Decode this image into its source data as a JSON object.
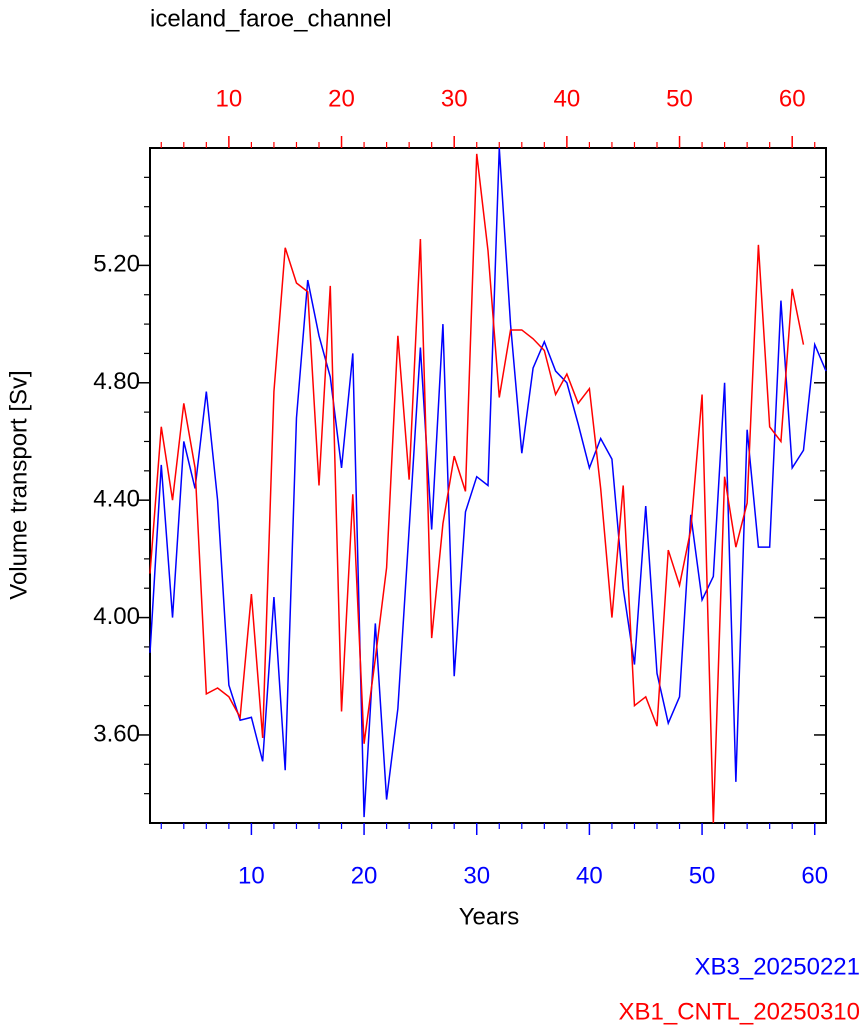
{
  "chart_data": {
    "type": "line",
    "title": "iceland_faroe_channel",
    "xlabel": "Years",
    "ylabel": "Volume transport [Sv]",
    "xlim": [
      1,
      61
    ],
    "xticks": [
      10,
      20,
      30,
      40,
      50,
      60
    ],
    "xminorticks": [
      2,
      4,
      6,
      8,
      12,
      14,
      16,
      18,
      22,
      24,
      26,
      28,
      32,
      34,
      36,
      38,
      42,
      44,
      46,
      48,
      52,
      54,
      56,
      58
    ],
    "xtick_color": "#0000ff",
    "x2lim": [
      3,
      63
    ],
    "x2ticks": [
      10,
      20,
      30,
      40,
      50,
      60
    ],
    "x2minorticks": [
      4,
      6,
      8,
      12,
      14,
      16,
      18,
      22,
      24,
      26,
      28,
      32,
      34,
      36,
      38,
      42,
      44,
      46,
      48,
      52,
      54,
      56,
      58,
      62
    ],
    "x2tick_color": "#ff0000",
    "ylim": [
      3.3,
      5.6
    ],
    "yticks": [
      {
        "value": 3.6,
        "label": "3.60"
      },
      {
        "value": 4.0,
        "label": "4.00"
      },
      {
        "value": 4.4,
        "label": "4.40"
      },
      {
        "value": 4.8,
        "label": "4.80"
      },
      {
        "value": 5.2,
        "label": "5.20"
      }
    ],
    "yminorticks": [
      3.4,
      3.5,
      3.7,
      3.8,
      3.9,
      4.1,
      4.2,
      4.3,
      4.5,
      4.6,
      4.7,
      4.9,
      5.0,
      5.1,
      5.3,
      5.4,
      5.5
    ],
    "series": [
      {
        "name": "XB3_20250221",
        "color": "#0000ff",
        "xaxis": "x",
        "x": [
          1,
          2,
          3,
          4,
          5,
          6,
          7,
          8,
          9,
          10,
          11,
          12,
          13,
          14,
          15,
          16,
          17,
          18,
          19,
          20,
          21,
          22,
          23,
          24,
          25,
          26,
          27,
          28,
          29,
          30,
          31,
          32,
          33,
          34,
          35,
          36,
          37,
          38,
          39,
          40,
          41,
          42,
          43,
          44,
          45,
          46,
          47,
          48,
          49,
          50,
          51,
          52,
          53,
          54,
          55,
          56,
          57,
          58,
          59,
          60,
          61
        ],
        "values": [
          3.88,
          4.52,
          4.0,
          4.6,
          4.44,
          4.77,
          4.4,
          3.77,
          3.65,
          3.66,
          3.51,
          4.07,
          3.48,
          4.68,
          5.15,
          4.96,
          4.82,
          4.51,
          4.9,
          3.32,
          3.98,
          3.38,
          3.69,
          4.3,
          4.92,
          4.3,
          5.0,
          3.8,
          4.36,
          4.48,
          4.45,
          5.6,
          5.0,
          4.56,
          4.85,
          4.94,
          4.84,
          4.8,
          4.66,
          4.51,
          4.61,
          4.54,
          4.1,
          3.84,
          4.38,
          3.81,
          3.64,
          3.73,
          4.35,
          4.06,
          4.14,
          4.8,
          3.44,
          4.64,
          4.24,
          4.24,
          5.08,
          4.51,
          4.57,
          4.93,
          4.84
        ]
      },
      {
        "name": "XB1_CNTL_20250310",
        "color": "#ff0000",
        "xaxis": "x2",
        "x": [
          3,
          4,
          5,
          6,
          7,
          8,
          9,
          10,
          11,
          12,
          13,
          14,
          15,
          16,
          17,
          18,
          19,
          20,
          21,
          22,
          23,
          24,
          25,
          26,
          27,
          28,
          29,
          30,
          31,
          32,
          33,
          34,
          35,
          36,
          37,
          38,
          39,
          40,
          41,
          42,
          43,
          44,
          45,
          46,
          47,
          48,
          49,
          50,
          51,
          52,
          53,
          54,
          55,
          56,
          57,
          58,
          59,
          60,
          61
        ],
        "values": [
          4.15,
          4.65,
          4.4,
          4.73,
          4.51,
          3.74,
          3.76,
          3.73,
          3.66,
          4.08,
          3.59,
          4.77,
          5.26,
          5.14,
          5.11,
          4.45,
          5.13,
          3.68,
          4.42,
          3.57,
          3.86,
          4.17,
          4.96,
          4.47,
          5.29,
          3.93,
          4.32,
          4.55,
          4.43,
          5.58,
          5.25,
          4.75,
          4.98,
          4.98,
          4.95,
          4.91,
          4.76,
          4.83,
          4.73,
          4.78,
          4.44,
          4.0,
          4.45,
          3.7,
          3.73,
          3.63,
          4.23,
          4.11,
          4.3,
          4.76,
          3.3,
          4.48,
          4.24,
          4.39,
          5.27,
          4.65,
          4.6,
          5.12,
          4.93
        ]
      }
    ]
  }
}
